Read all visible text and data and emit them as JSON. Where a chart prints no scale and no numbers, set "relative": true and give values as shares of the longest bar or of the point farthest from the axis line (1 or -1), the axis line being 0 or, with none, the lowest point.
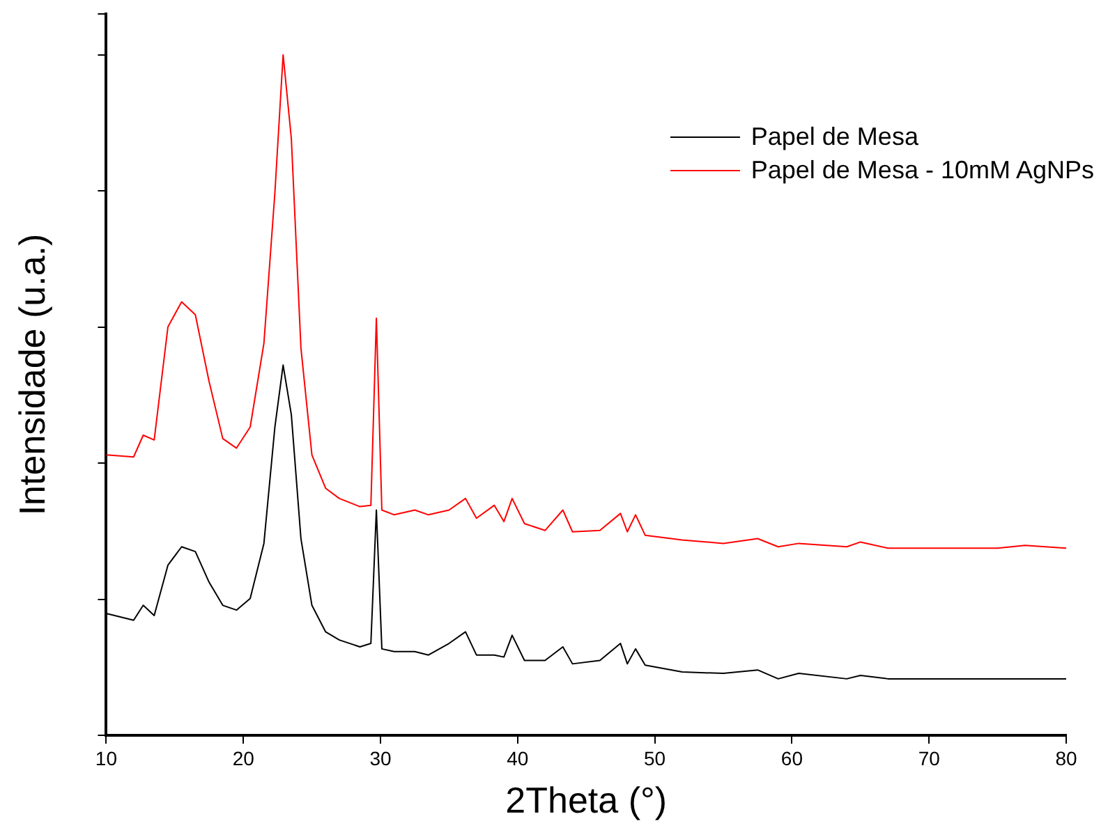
{
  "chart_data": {
    "type": "line",
    "xlabel": "2Theta (°)",
    "ylabel": "Intensidade (u.a.)",
    "relative": true,
    "xlim": [
      10,
      80
    ],
    "xticks": [
      10,
      20,
      30,
      40,
      50,
      60,
      70,
      80
    ],
    "legend": "top right",
    "marker": "none",
    "line_style": "solid",
    "grid": false,
    "x": [
      10,
      12,
      12.7,
      13.5,
      14.5,
      15.5,
      16.5,
      17.5,
      18.5,
      19.5,
      20.5,
      21.5,
      22.3,
      22.9,
      23.5,
      24.2,
      25,
      26,
      27,
      28.5,
      29.3,
      29.7,
      30.1,
      31,
      32.5,
      33.5,
      35,
      36.2,
      37,
      38.3,
      39,
      39.6,
      40.5,
      42,
      43.3,
      44,
      46,
      47.5,
      48,
      48.6,
      49.3,
      52,
      55,
      57.5,
      59,
      60.5,
      64,
      65,
      67,
      70,
      75,
      77,
      80
    ],
    "series": [
      {
        "name": "Papel de Mesa",
        "color": "#000000",
        "values": [
          0.179,
          0.169,
          0.191,
          0.176,
          0.25,
          0.277,
          0.27,
          0.225,
          0.191,
          0.184,
          0.201,
          0.282,
          0.453,
          0.544,
          0.471,
          0.289,
          0.191,
          0.152,
          0.14,
          0.13,
          0.135,
          0.331,
          0.127,
          0.123,
          0.123,
          0.118,
          0.135,
          0.152,
          0.118,
          0.118,
          0.115,
          0.147,
          0.11,
          0.11,
          0.13,
          0.105,
          0.11,
          0.135,
          0.105,
          0.127,
          0.103,
          0.093,
          0.091,
          0.096,
          0.083,
          0.091,
          0.083,
          0.088,
          0.083,
          0.083,
          0.083,
          0.083,
          0.083
        ]
      },
      {
        "name": "Papel de Mesa - 10mM AgNPs",
        "color": "#ff0000",
        "values": [
          0.412,
          0.409,
          0.441,
          0.434,
          0.6,
          0.637,
          0.618,
          0.52,
          0.436,
          0.422,
          0.453,
          0.576,
          0.797,
          1,
          0.877,
          0.569,
          0.412,
          0.363,
          0.348,
          0.336,
          0.338,
          0.613,
          0.331,
          0.324,
          0.331,
          0.324,
          0.331,
          0.348,
          0.319,
          0.338,
          0.314,
          0.348,
          0.311,
          0.301,
          0.331,
          0.299,
          0.301,
          0.326,
          0.299,
          0.324,
          0.294,
          0.287,
          0.282,
          0.289,
          0.277,
          0.282,
          0.277,
          0.284,
          0.275,
          0.275,
          0.275,
          0.279,
          0.275
        ]
      }
    ]
  }
}
